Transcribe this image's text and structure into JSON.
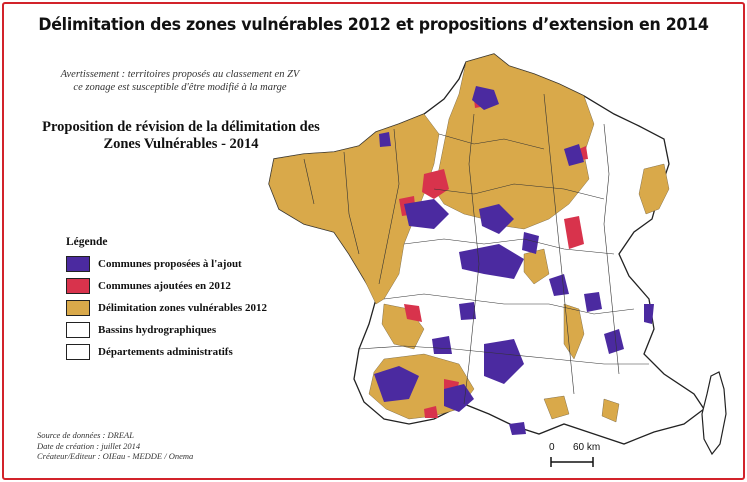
{
  "title": "Délimitation des zones vulnérables 2012 et propositions d’extension en 2014",
  "warning": [
    "Avertissement : territoires proposés au classement en ZV",
    "ce zonage est susceptible d'être modifié à la marge"
  ],
  "subtitle": [
    "Proposition de révision de la délimitation des",
    "Zones Vulnérables - 2014"
  ],
  "legend": {
    "title": "Légende",
    "items": [
      {
        "label": "Communes proposées à l'ajout",
        "color": "#4b2aa0"
      },
      {
        "label": "Communes ajoutées en 2012",
        "color": "#d8334c"
      },
      {
        "label": "Délimitation zones vulnérables 2012",
        "color": "#d9a94a"
      },
      {
        "label": "Bassins hydrographiques",
        "color": "#ffffff"
      },
      {
        "label": "Départements administratifs",
        "color": "#ffffff"
      }
    ]
  },
  "sources": [
    "Source de données : DREAL",
    "Date de création : juillet 2014",
    "Créateur/Editeur : OIEau - MEDDE / Onema"
  ],
  "scale": {
    "zero": "0",
    "distance": "60 km"
  },
  "colors": {
    "frame": "#d2232a",
    "zv2012": "#d9a94a",
    "added2012": "#d8334c",
    "proposed2014": "#4b2aa0"
  }
}
